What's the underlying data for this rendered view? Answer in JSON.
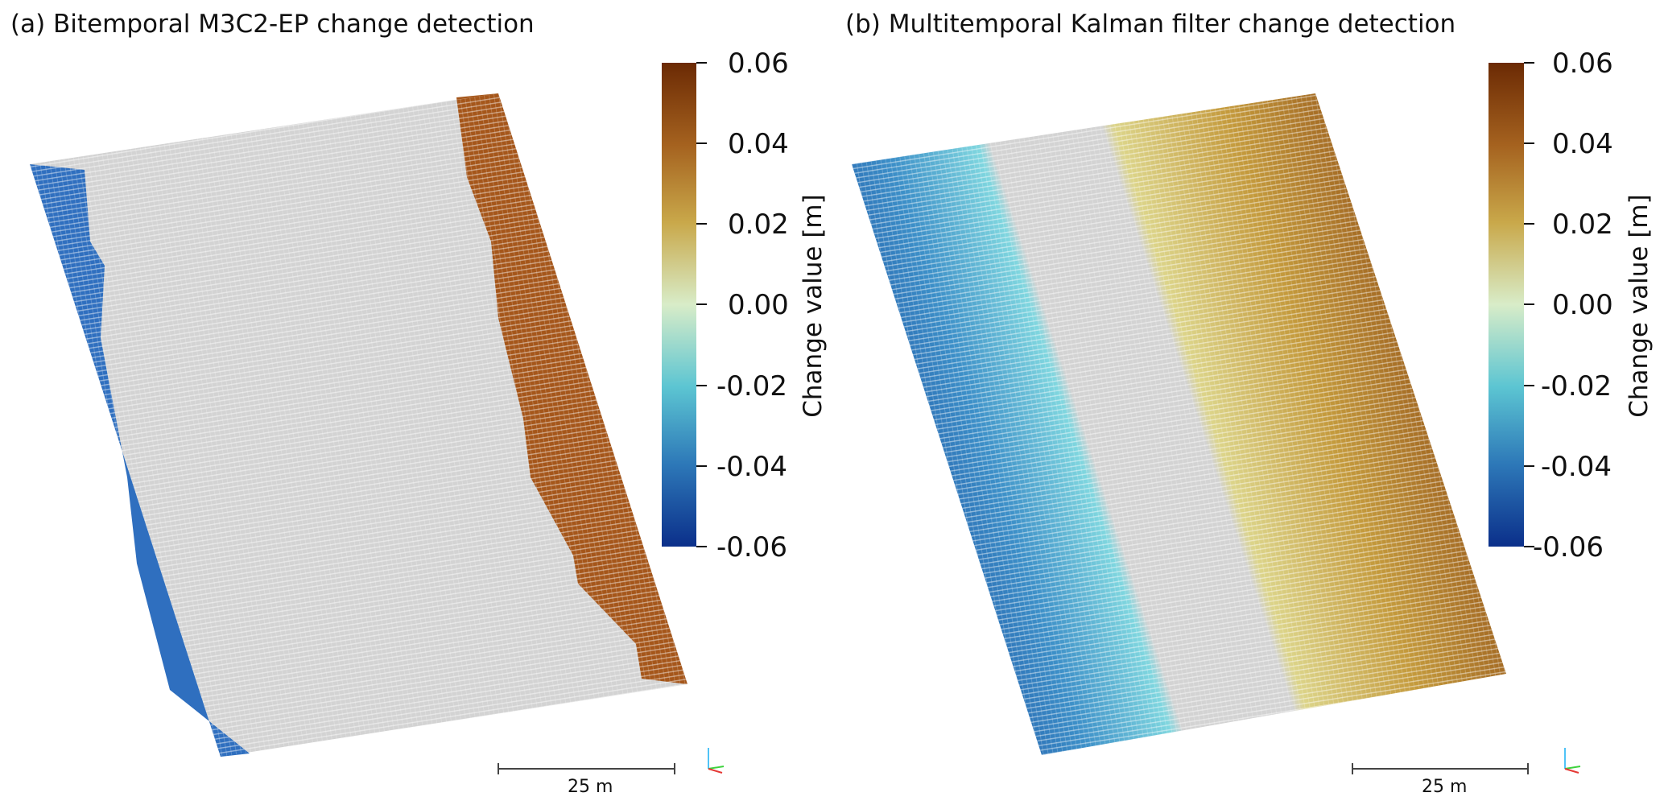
{
  "panels": [
    {
      "title": "(a) Bitemporal M3C2-EP change detection",
      "colorbar": {
        "label": "Change value [m]",
        "ticks": [
          "0.06",
          "0.04",
          "0.02",
          "0.00",
          "-0.02",
          "-0.04",
          "-0.06"
        ],
        "range": [
          -0.06,
          0.06
        ]
      },
      "scale_bar": "25 m"
    },
    {
      "title": "(b) Multitemporal Kalman filter change detection",
      "colorbar": {
        "label": "Change value [m]",
        "ticks": [
          "0.06",
          "0.04",
          "0.02",
          "0.00",
          "-0.02",
          "-0.04",
          "-0.06"
        ],
        "range": [
          -0.06,
          0.06
        ]
      },
      "scale_bar": "25 m"
    }
  ],
  "colors": {
    "no_change": "#d3d3d3",
    "cmap": [
      "#0b2f8a",
      "#2d78b8",
      "#5cc5d2",
      "#d8ecc8",
      "#c9a84a",
      "#a5621f",
      "#6b2a04"
    ]
  }
}
